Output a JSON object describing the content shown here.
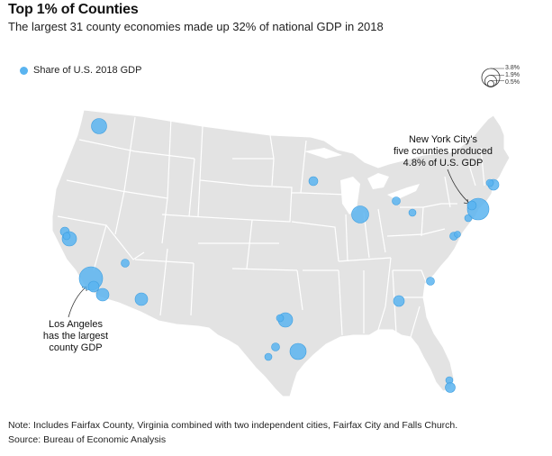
{
  "header": {
    "title": "Top 1% of Counties",
    "subtitle": "The largest 31 county economies made up 32% of national GDP in 2018"
  },
  "legend": {
    "label": "Share of U.S. 2018 GDP",
    "color": "#5ab4f0",
    "sizes": [
      "3.8%",
      "1.9%",
      "0.5%"
    ]
  },
  "annotations": {
    "ny_line1": "New York City's",
    "ny_line2": "five counties produced",
    "ny_line3": "4.8% of U.S. GDP",
    "la_line1": "Los Angeles",
    "la_line2": "has the largest",
    "la_line3": "county GDP"
  },
  "footer": {
    "note": "Note: Includes Fairfax County, Virginia combined with two independent cities, Fairfax City and Falls Church.",
    "source": "Source: Bureau of Economic Analysis"
  },
  "colors": {
    "land": "#e3e3e3",
    "borders": "#ffffff",
    "bubble": "#5ab4f0",
    "bubble_stroke": "#3d9ee0"
  }
}
